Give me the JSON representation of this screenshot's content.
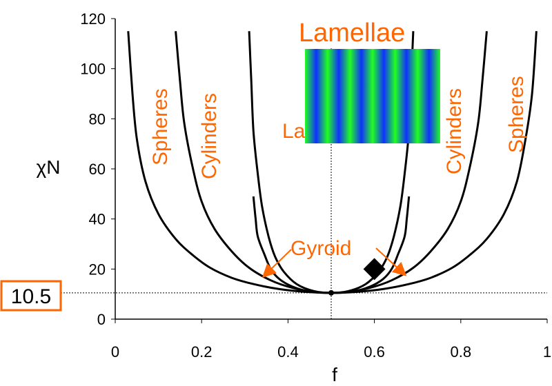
{
  "chart_data": {
    "type": "line",
    "xlabel": "f",
    "ylabel": "χN",
    "xlim": [
      0,
      1
    ],
    "ylim": [
      0,
      120
    ],
    "xticks": [
      "0",
      "0.2",
      "0.4",
      "0.6",
      "0.8",
      "1"
    ],
    "yticks": [
      "0",
      "20",
      "40",
      "60",
      "80",
      "100",
      "120"
    ],
    "grid": false,
    "critical_point": {
      "f": 0.5,
      "chiN": 10.5,
      "label": "10.5"
    },
    "marker": {
      "shape": "diamond",
      "f": 0.6,
      "chiN": 20
    },
    "series": [
      {
        "name": "Spheres",
        "left": [
          [
            0.03,
            115
          ],
          [
            0.04,
            90
          ],
          [
            0.05,
            72
          ],
          [
            0.07,
            55
          ],
          [
            0.1,
            42
          ],
          [
            0.14,
            32
          ],
          [
            0.18,
            25.5
          ],
          [
            0.22,
            20.5
          ],
          [
            0.27,
            16.5
          ],
          [
            0.32,
            14
          ],
          [
            0.38,
            12
          ],
          [
            0.44,
            10.9
          ],
          [
            0.5,
            10.5
          ]
        ],
        "right": [
          [
            0.5,
            10.5
          ],
          [
            0.56,
            10.9
          ],
          [
            0.62,
            12
          ],
          [
            0.68,
            14
          ],
          [
            0.73,
            16.5
          ],
          [
            0.78,
            20.5
          ],
          [
            0.82,
            25.5
          ],
          [
            0.86,
            32
          ],
          [
            0.9,
            42
          ],
          [
            0.93,
            55
          ],
          [
            0.95,
            72
          ],
          [
            0.965,
            90
          ],
          [
            0.975,
            115
          ]
        ]
      },
      {
        "name": "Cylinders",
        "left": [
          [
            0.14,
            115
          ],
          [
            0.15,
            95
          ],
          [
            0.16,
            78
          ],
          [
            0.18,
            60
          ],
          [
            0.2,
            47
          ],
          [
            0.23,
            36
          ],
          [
            0.27,
            27
          ],
          [
            0.31,
            20.5
          ],
          [
            0.36,
            15.5
          ],
          [
            0.41,
            12.5
          ],
          [
            0.46,
            10.9
          ],
          [
            0.5,
            10.5
          ]
        ],
        "right": [
          [
            0.5,
            10.5
          ],
          [
            0.54,
            10.9
          ],
          [
            0.59,
            12.5
          ],
          [
            0.64,
            15.5
          ],
          [
            0.69,
            20.5
          ],
          [
            0.73,
            27
          ],
          [
            0.77,
            36
          ],
          [
            0.8,
            47
          ],
          [
            0.82,
            60
          ],
          [
            0.84,
            78
          ],
          [
            0.85,
            95
          ],
          [
            0.86,
            115
          ]
        ]
      },
      {
        "name": "Lamellae",
        "left": [
          [
            0.31,
            115
          ],
          [
            0.315,
            95
          ],
          [
            0.32,
            75
          ],
          [
            0.33,
            58
          ],
          [
            0.34,
            45
          ],
          [
            0.355,
            33
          ],
          [
            0.37,
            25
          ],
          [
            0.39,
            19
          ],
          [
            0.42,
            14
          ],
          [
            0.46,
            11.2
          ],
          [
            0.5,
            10.5
          ]
        ],
        "right": [
          [
            0.5,
            10.5
          ],
          [
            0.54,
            11.2
          ],
          [
            0.58,
            14
          ],
          [
            0.61,
            19
          ],
          [
            0.63,
            25
          ],
          [
            0.645,
            33
          ],
          [
            0.66,
            45
          ],
          [
            0.67,
            58
          ],
          [
            0.68,
            75
          ],
          [
            0.685,
            95
          ],
          [
            0.69,
            115
          ]
        ]
      },
      {
        "name": "Gyroid",
        "left": [
          [
            0.32,
            49
          ],
          [
            0.325,
            40
          ],
          [
            0.33,
            33
          ],
          [
            0.345,
            26
          ],
          [
            0.36,
            20
          ],
          [
            0.38,
            16
          ],
          [
            0.41,
            13
          ],
          [
            0.45,
            11
          ],
          [
            0.5,
            10.5
          ]
        ],
        "right": [
          [
            0.5,
            10.5
          ],
          [
            0.55,
            11
          ],
          [
            0.59,
            13
          ],
          [
            0.62,
            16
          ],
          [
            0.64,
            20
          ],
          [
            0.655,
            26
          ],
          [
            0.67,
            33
          ],
          [
            0.675,
            40
          ],
          [
            0.68,
            49
          ]
        ]
      }
    ],
    "region_labels": {
      "spheres_left": "Spheres",
      "cylinders_left": "Cylinders",
      "lamellae_title": "Lamellae",
      "lamellae_partial": "La",
      "cylinders_right": "Cylinders",
      "spheres_right": "Spheres",
      "gyroid": "Gyroid"
    },
    "colors": {
      "curve": "#000000",
      "label": "#ff6600",
      "stripe_blue": "#1030ff",
      "stripe_green": "#20ff20"
    }
  }
}
